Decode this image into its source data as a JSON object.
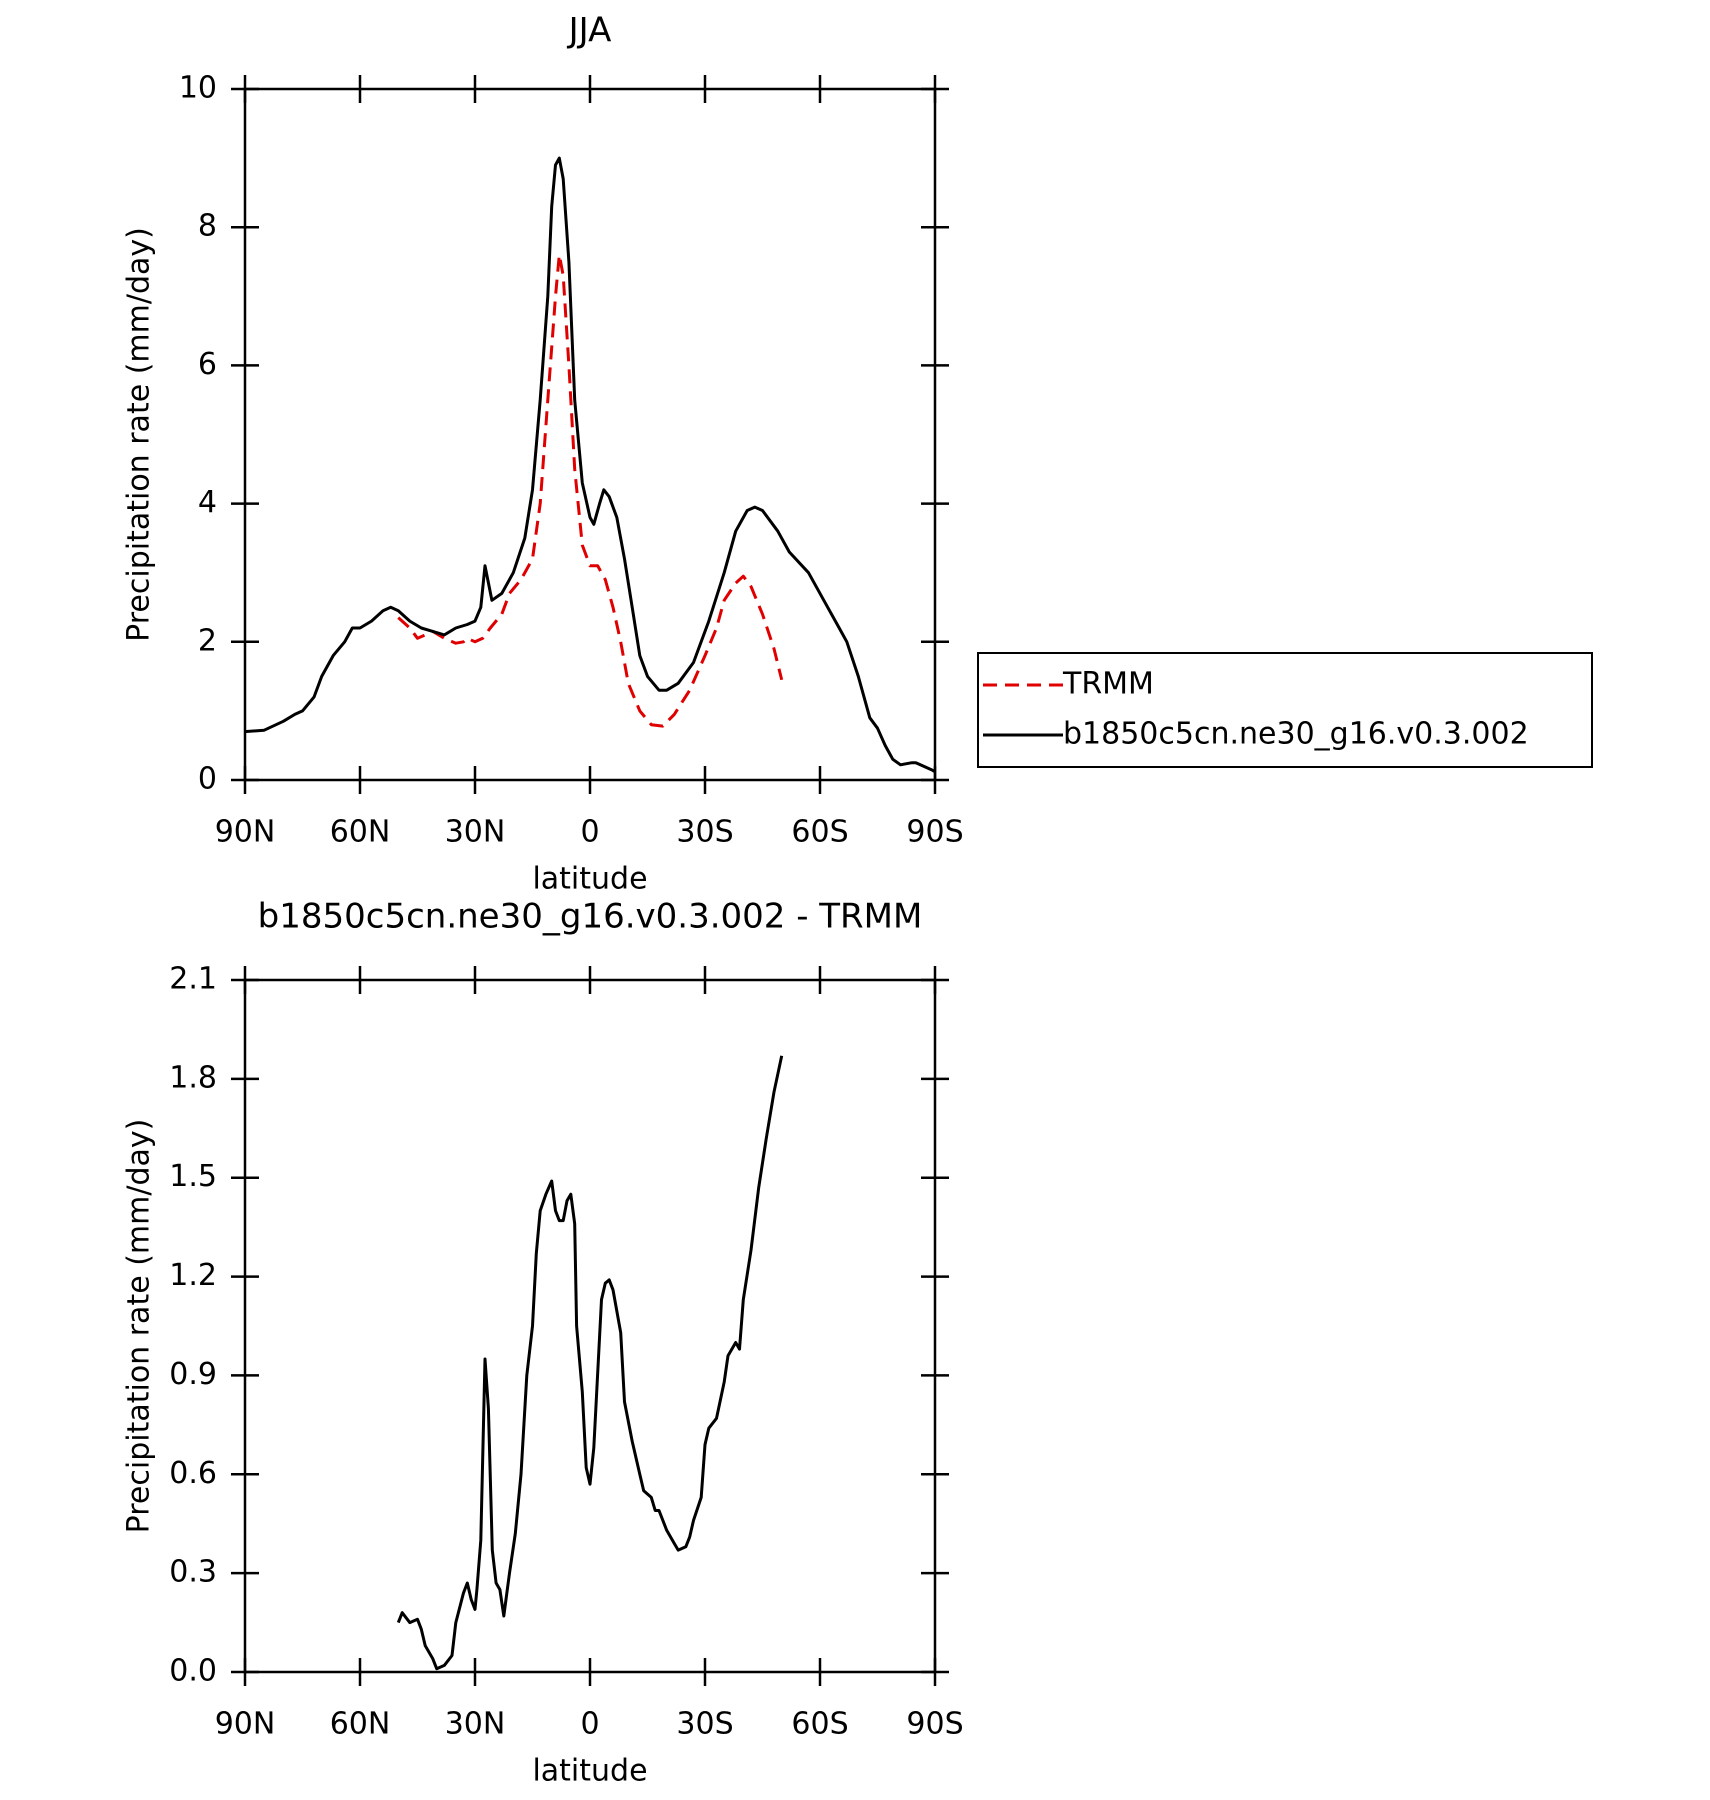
{
  "chart_data": [
    {
      "type": "line",
      "title": "JJA",
      "xlabel": "latitude",
      "ylabel": "Precipitation rate (mm/day)",
      "xlim": [
        90,
        -90
      ],
      "xticks": [
        {
          "value": 90,
          "label": "90N"
        },
        {
          "value": 60,
          "label": "60N"
        },
        {
          "value": 30,
          "label": "30N"
        },
        0,
        {
          "value": -30,
          "label": "30S"
        },
        {
          "value": -60,
          "label": "60S"
        },
        {
          "value": -90,
          "label": "90S"
        }
      ],
      "ylim": [
        0,
        10
      ],
      "yticks": [
        0,
        2,
        4,
        6,
        8,
        10
      ],
      "legend": "right",
      "series": [
        {
          "name": "TRMM",
          "color": "#e00000",
          "dash": true,
          "x": [
            50,
            47,
            45,
            43,
            41,
            38,
            35,
            33,
            32,
            30,
            28,
            26,
            23,
            21,
            18,
            15,
            13,
            11,
            9,
            8,
            7,
            5.5,
            4,
            2,
            0,
            -2,
            -4,
            -6,
            -8,
            -10,
            -13,
            -16,
            -19,
            -22,
            -26,
            -30,
            -33,
            -35,
            -38,
            -40,
            -42,
            -45,
            -48,
            -50
          ],
          "values": [
            2.35,
            2.2,
            2.05,
            2.1,
            2.15,
            2.05,
            1.98,
            2.0,
            2.05,
            2.0,
            2.05,
            2.2,
            2.4,
            2.7,
            2.9,
            3.2,
            4.0,
            5.5,
            7.0,
            7.6,
            7.3,
            6.0,
            4.5,
            3.4,
            3.1,
            3.1,
            2.9,
            2.5,
            2.0,
            1.4,
            1.0,
            0.8,
            0.78,
            0.95,
            1.3,
            1.8,
            2.2,
            2.6,
            2.85,
            2.95,
            2.8,
            2.4,
            1.9,
            1.45
          ]
        },
        {
          "name": "b1850c5cn.ne30_g16.v0.3.002",
          "color": "#000000",
          "dash": false,
          "x": [
            90,
            85,
            80,
            77,
            75,
            72,
            70,
            67,
            64,
            62,
            60,
            57,
            54,
            52,
            50,
            47,
            44,
            41,
            38,
            35,
            32,
            30,
            28.5,
            27.4,
            25.6,
            23,
            20,
            17,
            15,
            13,
            11,
            10,
            9,
            8,
            7,
            5.5,
            4,
            2,
            0,
            -1,
            -2.5,
            -3.6,
            -5,
            -7,
            -9,
            -11,
            -13,
            -15,
            -18,
            -20,
            -23,
            -27,
            -31,
            -35,
            -38,
            -41,
            -43,
            -45,
            -49,
            -52,
            -57,
            -61,
            -65,
            -67,
            -70,
            -73,
            -75,
            -77,
            -79,
            -81,
            -84,
            -85,
            -89,
            -90
          ],
          "values": [
            0.7,
            0.72,
            0.85,
            0.95,
            1.0,
            1.2,
            1.5,
            1.8,
            2.0,
            2.2,
            2.2,
            2.3,
            2.45,
            2.5,
            2.45,
            2.3,
            2.2,
            2.15,
            2.1,
            2.2,
            2.25,
            2.3,
            2.5,
            3.1,
            2.6,
            2.7,
            3.0,
            3.5,
            4.2,
            5.5,
            7.0,
            8.3,
            8.9,
            9.0,
            8.7,
            7.5,
            5.5,
            4.3,
            3.8,
            3.7,
            4.0,
            4.2,
            4.1,
            3.8,
            3.2,
            2.5,
            1.8,
            1.5,
            1.3,
            1.3,
            1.4,
            1.7,
            2.3,
            3.0,
            3.6,
            3.9,
            3.95,
            3.9,
            3.6,
            3.3,
            3.0,
            2.6,
            2.2,
            2.0,
            1.5,
            0.9,
            0.75,
            0.5,
            0.3,
            0.22,
            0.25,
            0.25,
            0.15,
            0.12
          ]
        }
      ]
    },
    {
      "type": "line",
      "title": "b1850c5cn.ne30_g16.v0.3.002 - TRMM",
      "xlabel": "latitude",
      "ylabel": "Precipitation rate (mm/day)",
      "xlim": [
        90,
        -90
      ],
      "xticks": [
        {
          "value": 90,
          "label": "90N"
        },
        {
          "value": 60,
          "label": "60N"
        },
        {
          "value": 30,
          "label": "30N"
        },
        0,
        {
          "value": -30,
          "label": "30S"
        },
        {
          "value": -60,
          "label": "60S"
        },
        {
          "value": -90,
          "label": "90S"
        }
      ],
      "ylim": [
        0,
        2.1
      ],
      "yticks": [
        {
          "value": 0,
          "label": "0.0"
        },
        0.3,
        0.6,
        0.9,
        1.2,
        1.5,
        1.8,
        2.1
      ],
      "series": [
        {
          "color": "#000000",
          "dash": false,
          "x": [
            50,
            49,
            47,
            45,
            44,
            43,
            41,
            40,
            38,
            36,
            35,
            33,
            32,
            31,
            30,
            29.5,
            28.5,
            27.4,
            26.5,
            25.5,
            24.5,
            23.5,
            22.5,
            21,
            19.5,
            18,
            16.5,
            15,
            14,
            13,
            11.5,
            10,
            9,
            8,
            7,
            6,
            5,
            4,
            3.5,
            2,
            1,
            0,
            -1,
            -3,
            -4,
            -5,
            -6,
            -8,
            -9,
            -11,
            -13,
            -14,
            -16,
            -17,
            -18,
            -20,
            -22,
            -23,
            -25,
            -26,
            -27,
            -29,
            -30,
            -31,
            -33,
            -35,
            -36,
            -38,
            -39,
            -40,
            -42,
            -44,
            -46,
            -48,
            -50
          ],
          "values": [
            0.15,
            0.18,
            0.15,
            0.16,
            0.13,
            0.08,
            0.04,
            0.01,
            0.02,
            0.05,
            0.15,
            0.24,
            0.27,
            0.22,
            0.19,
            0.25,
            0.4,
            0.95,
            0.8,
            0.37,
            0.27,
            0.25,
            0.17,
            0.3,
            0.42,
            0.6,
            0.9,
            1.05,
            1.27,
            1.4,
            1.45,
            1.49,
            1.4,
            1.37,
            1.37,
            1.43,
            1.45,
            1.36,
            1.05,
            0.85,
            0.62,
            0.57,
            0.68,
            1.13,
            1.18,
            1.19,
            1.16,
            1.03,
            0.82,
            0.7,
            0.6,
            0.55,
            0.53,
            0.49,
            0.49,
            0.43,
            0.39,
            0.37,
            0.38,
            0.41,
            0.46,
            0.53,
            0.69,
            0.74,
            0.77,
            0.88,
            0.96,
            1.0,
            0.98,
            1.13,
            1.28,
            1.47,
            1.62,
            1.76,
            1.87
          ]
        }
      ]
    }
  ]
}
